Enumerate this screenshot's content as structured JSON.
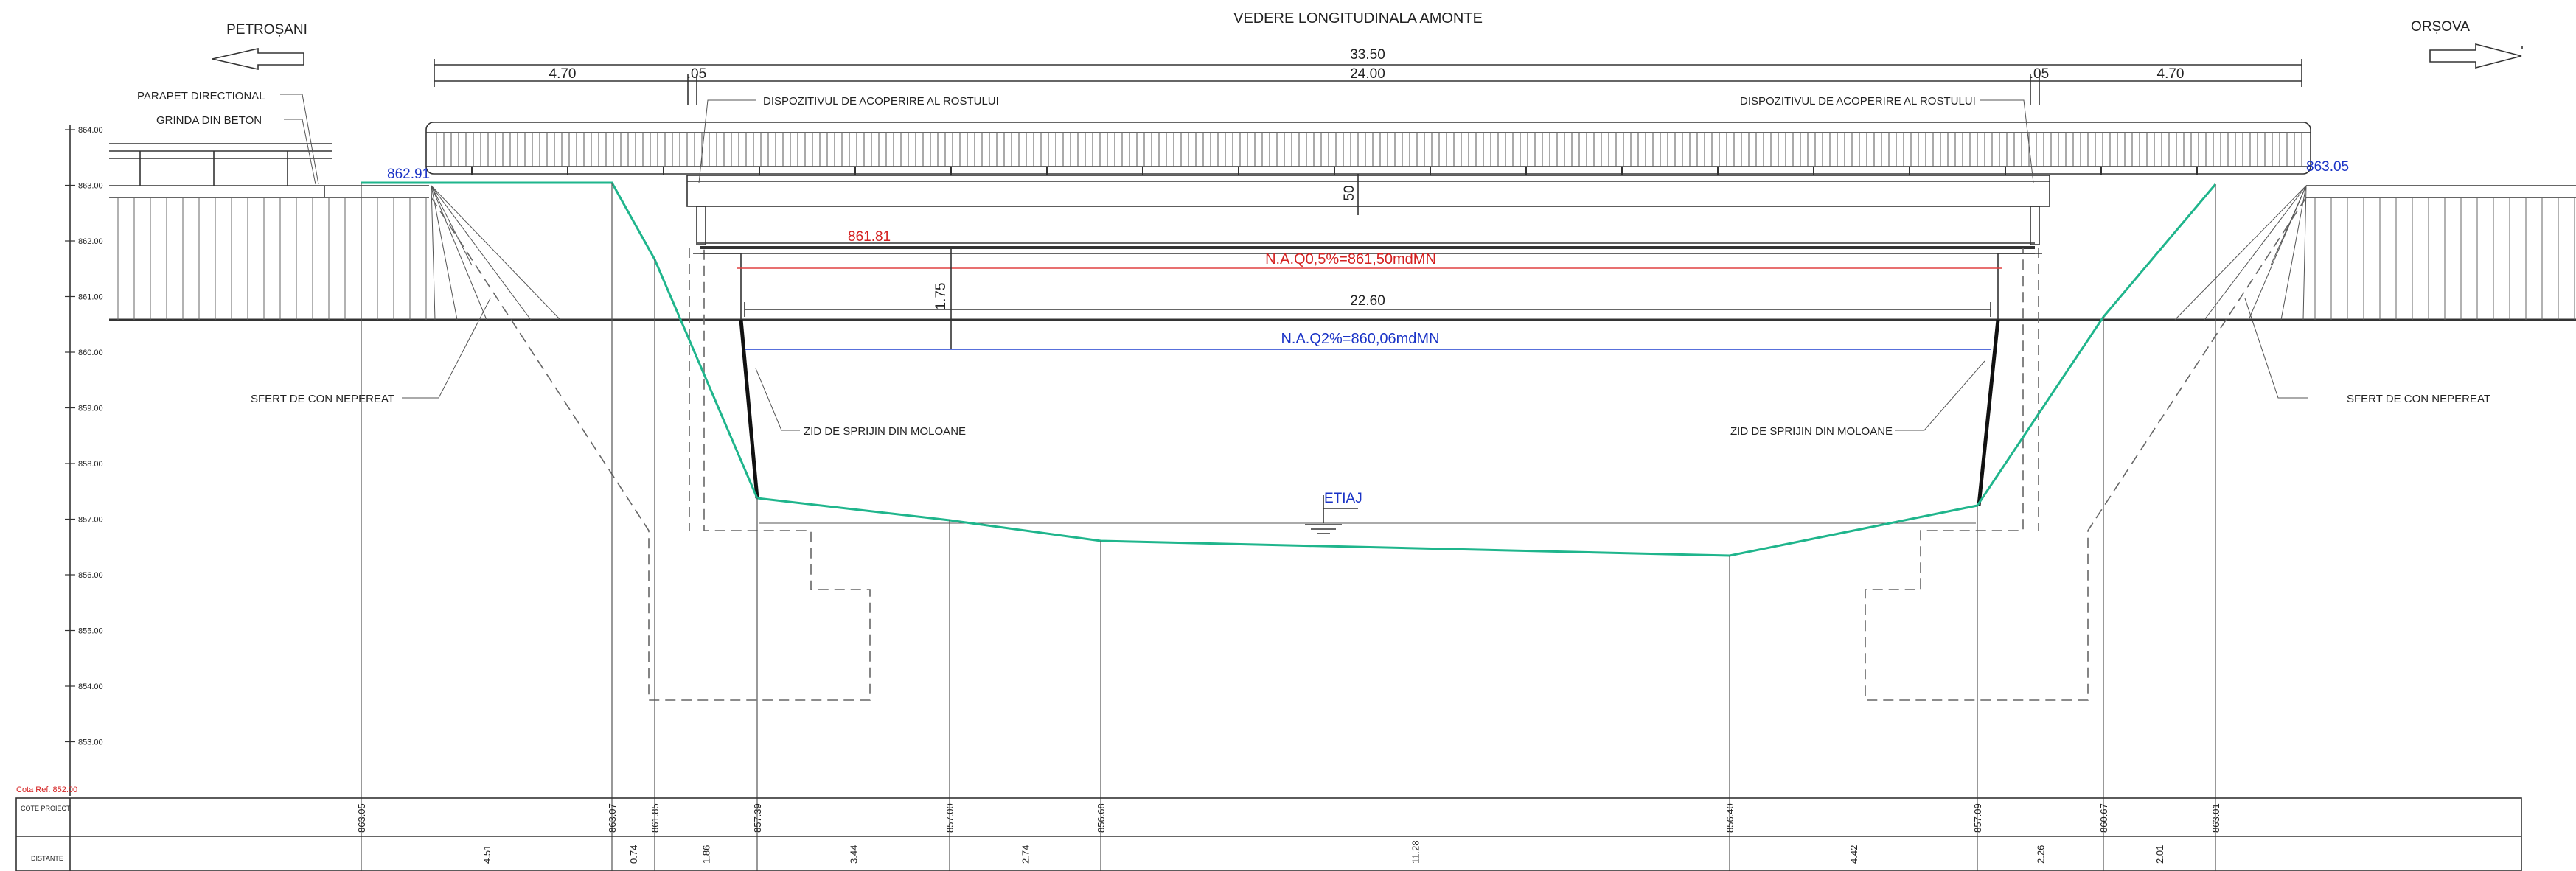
{
  "title": "VEDERE LONGITUDINALA AMONTE",
  "direction_left": "PETROȘANI",
  "direction_right": "ORȘOVA",
  "dims_top": {
    "total": "33.50",
    "left_span": "4.70",
    "left_gap": ".05",
    "middle": "24.00",
    "right_gap": ".05",
    "right_span": "4.70"
  },
  "annotations": {
    "parapet": "PARAPET DIRECTIONAL",
    "grinda": "GRINDA DIN BETON",
    "dispozitiv_left": "DISPOZITIVUL DE ACOPERIRE AL ROSTULUI",
    "dispozitiv_right": "DISPOZITIVUL DE ACOPERIRE AL ROSTULUI",
    "sfert_left": "SFERT DE CON NEPEREAT",
    "sfert_right": "SFERT DE CON NEPEREAT",
    "zid_left": "ZID DE SPRIJIN DIN MOLOANE",
    "zid_right": "ZID DE SPRIJIN DIN MOLOANE",
    "etiaj": "ETIAJ"
  },
  "levels": {
    "left_end": "862.91",
    "right_end": "863.05",
    "underside": "861.81",
    "naq05": "N.A.Q0,5%=861,50mdMN",
    "naq2": "N.A.Q2%=860,06mdMN"
  },
  "inner_dims": {
    "depth_50": "50",
    "clearance": "1.75",
    "span": "22.60"
  },
  "elevation_ticks": [
    "864.00",
    "863.00",
    "862.00",
    "861.00",
    "860.00",
    "859.00",
    "858.00",
    "857.00",
    "856.00",
    "855.00",
    "854.00",
    "853.00"
  ],
  "plan_ref": "Cota Ref. 852.00",
  "table": {
    "row1_label": "COTE PROIECT",
    "row2_label": "DISTANTE",
    "cote": [
      "863.05",
      "863.07",
      "861.85",
      "857.39",
      "857.00",
      "856.68",
      "856.40",
      "857.09",
      "860.67",
      "863.01"
    ],
    "distante": [
      "4.51",
      "0.74",
      "1.86",
      "3.44",
      "2.74",
      "11.28",
      "4.42",
      "2.26",
      "2.01"
    ]
  },
  "colors": {
    "terrain": "#1fb58c",
    "flood_05": "#d42020",
    "flood_2": "#1a33c6",
    "lines": "#333333"
  }
}
